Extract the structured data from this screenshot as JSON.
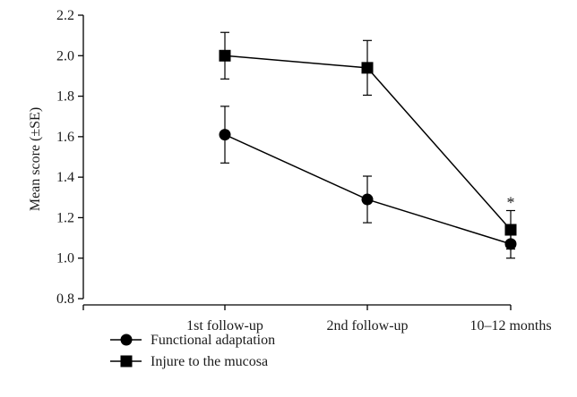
{
  "chart_data": {
    "type": "line",
    "title": "",
    "xlabel": "",
    "ylabel": "Mean score (±SE)",
    "categories": [
      "1st follow-up",
      "2nd follow-up",
      "10–12 months"
    ],
    "ylim": [
      0.8,
      2.2
    ],
    "yticks": [
      "0.8",
      "1.0",
      "1.2",
      "1.4",
      "1.6",
      "1.8",
      "2.0",
      "2.2"
    ],
    "grid": false,
    "legend_position": "bottom-left",
    "series": [
      {
        "name": "Functional adaptation",
        "marker": "circle",
        "color": "#000000",
        "values": [
          1.61,
          1.29,
          1.07
        ],
        "se": [
          0.14,
          0.115,
          0.07
        ]
      },
      {
        "name": "Injure to the mucosa",
        "marker": "square",
        "color": "#000000",
        "values": [
          2.0,
          1.94,
          1.14
        ],
        "se": [
          0.115,
          0.135,
          0.095
        ]
      }
    ],
    "annotations": [
      {
        "category": "10–12 months",
        "text": "*"
      }
    ]
  }
}
